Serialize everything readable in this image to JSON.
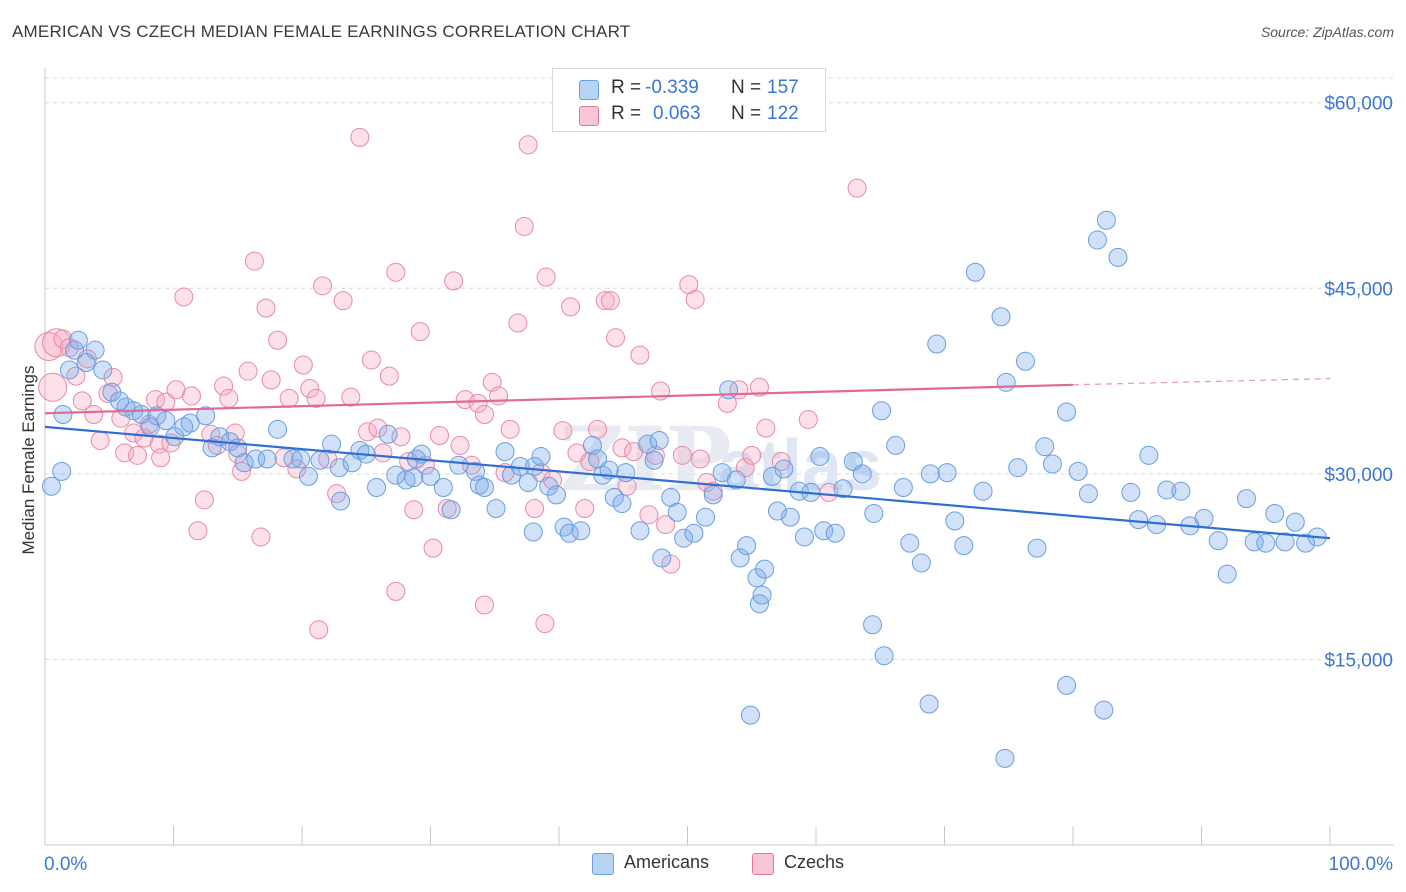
{
  "title": "AMERICAN VS CZECH MEDIAN FEMALE EARNINGS CORRELATION CHART",
  "source": "Source: ZipAtlas.com",
  "watermark": "ZIPatlas",
  "legend": {
    "rows": [
      {
        "r_label": "R =",
        "r_value": "-0.339",
        "n_label": "N =",
        "n_value": "157",
        "color": "#a9c8f0",
        "border": "#6a9fe0"
      },
      {
        "r_label": "R =",
        "r_value": "0.063",
        "n_label": "N =",
        "n_value": "122",
        "color": "#f5b8cb",
        "border": "#e07a9c"
      }
    ]
  },
  "bottom_legend": [
    "Americans",
    "Czechs"
  ],
  "colors": {
    "americans_fill": "rgba(120,170,235,0.35)",
    "americans_stroke": "#6a9fe0",
    "americans_line": "#2f6fd1",
    "czechs_fill": "rgba(245,170,195,0.35)",
    "czechs_stroke": "#e889a8",
    "czechs_line": "#e06a93",
    "axis_text": "#3b76d3",
    "grid": "#d8d8d8"
  },
  "chart_data": {
    "type": "scatter",
    "title": "AMERICAN VS CZECH MEDIAN FEMALE EARNINGS CORRELATION CHART",
    "xlabel": "",
    "ylabel": "Median Female Earnings",
    "xlim": [
      0,
      100
    ],
    "ylim": [
      0,
      62000
    ],
    "x_tick_labels": [
      "0.0%",
      "100.0%"
    ],
    "y_ticks": [
      15000,
      30000,
      45000,
      60000
    ],
    "y_tick_labels": [
      "$15,000",
      "$30,000",
      "$45,000",
      "$60,000"
    ],
    "grid": true,
    "series": [
      {
        "name": "Americans",
        "trend": {
          "x": [
            0,
            100
          ],
          "y": [
            33800,
            24800
          ]
        },
        "points": [
          [
            0.5,
            29000
          ],
          [
            1.3,
            30200
          ],
          [
            1.4,
            34800
          ],
          [
            1.9,
            38400
          ],
          [
            2.3,
            40000
          ],
          [
            2.6,
            40800
          ],
          [
            3.2,
            39000
          ],
          [
            3.9,
            40000
          ],
          [
            4.5,
            38400
          ],
          [
            5.2,
            36600
          ],
          [
            5.8,
            35900
          ],
          [
            6.3,
            35400
          ],
          [
            6.9,
            35100
          ],
          [
            7.5,
            34800
          ],
          [
            8.2,
            33800
          ],
          [
            8.7,
            34700
          ],
          [
            9.4,
            34300
          ],
          [
            10.1,
            33000
          ],
          [
            10.8,
            33800
          ],
          [
            11.3,
            34100
          ],
          [
            12.5,
            34700
          ],
          [
            13.0,
            32100
          ],
          [
            13.6,
            33000
          ],
          [
            14.4,
            32600
          ],
          [
            15.0,
            32100
          ],
          [
            15.5,
            30900
          ],
          [
            16.4,
            31200
          ],
          [
            17.3,
            31200
          ],
          [
            18.1,
            33600
          ],
          [
            19.3,
            31200
          ],
          [
            19.9,
            31200
          ],
          [
            20.5,
            29800
          ],
          [
            21.4,
            31100
          ],
          [
            22.3,
            32400
          ],
          [
            22.9,
            30500
          ],
          [
            23.9,
            30900
          ],
          [
            24.5,
            31900
          ],
          [
            25.0,
            31600
          ],
          [
            25.8,
            28900
          ],
          [
            27.3,
            29900
          ],
          [
            28.1,
            29500
          ],
          [
            28.7,
            29700
          ],
          [
            28.9,
            31200
          ],
          [
            29.3,
            31600
          ],
          [
            30.0,
            29800
          ],
          [
            31.0,
            28900
          ],
          [
            31.6,
            27100
          ],
          [
            32.2,
            30700
          ],
          [
            33.5,
            30200
          ],
          [
            33.8,
            29100
          ],
          [
            34.2,
            28900
          ],
          [
            35.1,
            27200
          ],
          [
            35.8,
            31800
          ],
          [
            36.3,
            29900
          ],
          [
            37.0,
            30600
          ],
          [
            37.6,
            29300
          ],
          [
            38.1,
            30600
          ],
          [
            38.6,
            31400
          ],
          [
            39.2,
            29000
          ],
          [
            39.8,
            28300
          ],
          [
            40.4,
            25700
          ],
          [
            40.8,
            25200
          ],
          [
            41.7,
            25400
          ],
          [
            42.6,
            32300
          ],
          [
            43.0,
            31200
          ],
          [
            43.4,
            29900
          ],
          [
            43.9,
            30300
          ],
          [
            44.3,
            28100
          ],
          [
            44.9,
            27600
          ],
          [
            45.2,
            30100
          ],
          [
            46.3,
            25400
          ],
          [
            46.9,
            32400
          ],
          [
            47.4,
            31100
          ],
          [
            47.8,
            32700
          ],
          [
            48.0,
            23200
          ],
          [
            48.7,
            28100
          ],
          [
            49.2,
            26900
          ],
          [
            49.7,
            24800
          ],
          [
            50.5,
            25200
          ],
          [
            51.4,
            26500
          ],
          [
            52.0,
            28300
          ],
          [
            52.7,
            30100
          ],
          [
            53.2,
            36800
          ],
          [
            53.8,
            29500
          ],
          [
            54.1,
            23200
          ],
          [
            54.6,
            24200
          ],
          [
            55.4,
            21600
          ],
          [
            55.6,
            19500
          ],
          [
            55.8,
            20200
          ],
          [
            56.0,
            22300
          ],
          [
            56.6,
            29800
          ],
          [
            57.5,
            30400
          ],
          [
            58.0,
            26500
          ],
          [
            58.7,
            28600
          ],
          [
            59.1,
            24900
          ],
          [
            59.6,
            28500
          ],
          [
            60.3,
            31400
          ],
          [
            60.6,
            25400
          ],
          [
            61.5,
            25200
          ],
          [
            62.1,
            28800
          ],
          [
            62.9,
            31000
          ],
          [
            63.6,
            30000
          ],
          [
            64.5,
            26800
          ],
          [
            65.1,
            35100
          ],
          [
            66.2,
            32300
          ],
          [
            66.8,
            28900
          ],
          [
            67.3,
            24400
          ],
          [
            68.2,
            22800
          ],
          [
            68.9,
            30000
          ],
          [
            69.4,
            40500
          ],
          [
            70.2,
            30100
          ],
          [
            70.8,
            26200
          ],
          [
            71.5,
            24200
          ],
          [
            72.4,
            46300
          ],
          [
            73.0,
            28600
          ],
          [
            74.4,
            42700
          ],
          [
            74.8,
            37400
          ],
          [
            75.7,
            30500
          ],
          [
            76.3,
            39100
          ],
          [
            77.2,
            24000
          ],
          [
            77.8,
            32200
          ],
          [
            78.4,
            30800
          ],
          [
            79.5,
            35000
          ],
          [
            80.4,
            30200
          ],
          [
            81.2,
            28400
          ],
          [
            81.9,
            48900
          ],
          [
            82.6,
            50500
          ],
          [
            83.5,
            47500
          ],
          [
            84.5,
            28500
          ],
          [
            85.1,
            26300
          ],
          [
            85.9,
            31500
          ],
          [
            86.5,
            25900
          ],
          [
            87.3,
            28700
          ],
          [
            88.4,
            28600
          ],
          [
            89.1,
            25800
          ],
          [
            90.2,
            26400
          ],
          [
            91.3,
            24600
          ],
          [
            92.0,
            21900
          ],
          [
            93.5,
            28000
          ],
          [
            94.1,
            24500
          ],
          [
            95.0,
            24400
          ],
          [
            95.7,
            26800
          ],
          [
            96.5,
            24500
          ],
          [
            97.3,
            26100
          ],
          [
            98.1,
            24400
          ],
          [
            99.0,
            24900
          ],
          [
            54.9,
            10500
          ],
          [
            64.4,
            17800
          ],
          [
            65.3,
            15300
          ],
          [
            68.8,
            11400
          ],
          [
            74.7,
            7000
          ],
          [
            79.5,
            12900
          ],
          [
            82.4,
            10900
          ],
          [
            38.0,
            25300
          ],
          [
            26.7,
            33200
          ],
          [
            23.0,
            27800
          ],
          [
            57.0,
            27000
          ]
        ]
      },
      {
        "name": "Czechs",
        "trend": {
          "x": [
            0,
            80
          ],
          "y": [
            34900,
            37200
          ]
        },
        "trend_dashed": {
          "x": [
            80,
            100
          ],
          "y": [
            37200,
            37700
          ]
        },
        "points": [
          [
            0.3,
            40300
          ],
          [
            0.6,
            37000
          ],
          [
            0.9,
            40600
          ],
          [
            1.4,
            40900
          ],
          [
            1.9,
            40200
          ],
          [
            2.4,
            37900
          ],
          [
            2.9,
            35900
          ],
          [
            3.3,
            39300
          ],
          [
            3.8,
            34800
          ],
          [
            4.3,
            32700
          ],
          [
            4.9,
            36500
          ],
          [
            5.3,
            37800
          ],
          [
            5.9,
            34500
          ],
          [
            6.2,
            31700
          ],
          [
            6.9,
            33300
          ],
          [
            7.2,
            31500
          ],
          [
            7.7,
            32900
          ],
          [
            8.1,
            34000
          ],
          [
            8.6,
            36000
          ],
          [
            8.9,
            32400
          ],
          [
            9.4,
            35800
          ],
          [
            9.8,
            32500
          ],
          [
            10.2,
            36800
          ],
          [
            10.8,
            44300
          ],
          [
            11.4,
            36300
          ],
          [
            11.9,
            25400
          ],
          [
            12.4,
            27900
          ],
          [
            12.9,
            33200
          ],
          [
            13.4,
            32300
          ],
          [
            13.9,
            37100
          ],
          [
            14.3,
            36100
          ],
          [
            14.8,
            33300
          ],
          [
            15.3,
            30200
          ],
          [
            15.8,
            38300
          ],
          [
            16.3,
            47200
          ],
          [
            16.8,
            24900
          ],
          [
            17.2,
            43400
          ],
          [
            17.6,
            37600
          ],
          [
            18.1,
            40800
          ],
          [
            18.6,
            31300
          ],
          [
            19.0,
            36100
          ],
          [
            19.6,
            30400
          ],
          [
            20.1,
            38800
          ],
          [
            20.6,
            36900
          ],
          [
            21.1,
            36100
          ],
          [
            21.6,
            45200
          ],
          [
            22.0,
            31200
          ],
          [
            22.7,
            28400
          ],
          [
            23.2,
            44000
          ],
          [
            23.8,
            36200
          ],
          [
            24.5,
            57200
          ],
          [
            25.1,
            33400
          ],
          [
            25.4,
            39200
          ],
          [
            25.9,
            33700
          ],
          [
            26.3,
            31700
          ],
          [
            26.8,
            37900
          ],
          [
            27.3,
            46300
          ],
          [
            27.7,
            33000
          ],
          [
            28.3,
            31000
          ],
          [
            28.7,
            27100
          ],
          [
            29.2,
            41500
          ],
          [
            29.6,
            30700
          ],
          [
            30.2,
            24000
          ],
          [
            30.7,
            33100
          ],
          [
            31.3,
            27200
          ],
          [
            31.8,
            45600
          ],
          [
            32.3,
            32300
          ],
          [
            32.7,
            36000
          ],
          [
            33.2,
            30700
          ],
          [
            33.7,
            35700
          ],
          [
            34.2,
            34800
          ],
          [
            34.8,
            37400
          ],
          [
            35.3,
            36300
          ],
          [
            35.8,
            30100
          ],
          [
            36.2,
            33600
          ],
          [
            36.8,
            42200
          ],
          [
            37.3,
            50000
          ],
          [
            37.6,
            56600
          ],
          [
            38.1,
            27200
          ],
          [
            38.6,
            30100
          ],
          [
            39.0,
            45900
          ],
          [
            39.5,
            29500
          ],
          [
            40.3,
            33500
          ],
          [
            40.9,
            43500
          ],
          [
            41.4,
            31700
          ],
          [
            42.0,
            27200
          ],
          [
            42.4,
            31000
          ],
          [
            43.0,
            33600
          ],
          [
            43.6,
            44000
          ],
          [
            44.0,
            44000
          ],
          [
            44.4,
            41000
          ],
          [
            44.9,
            32100
          ],
          [
            45.3,
            29000
          ],
          [
            45.8,
            31800
          ],
          [
            46.3,
            39600
          ],
          [
            47.0,
            26700
          ],
          [
            47.5,
            31500
          ],
          [
            47.9,
            36700
          ],
          [
            48.3,
            25900
          ],
          [
            48.7,
            22700
          ],
          [
            49.6,
            31500
          ],
          [
            50.1,
            45300
          ],
          [
            50.6,
            44100
          ],
          [
            51.0,
            31200
          ],
          [
            51.5,
            29300
          ],
          [
            52.0,
            28600
          ],
          [
            53.1,
            35700
          ],
          [
            54.0,
            36800
          ],
          [
            54.5,
            30500
          ],
          [
            55.0,
            31500
          ],
          [
            55.6,
            37000
          ],
          [
            56.1,
            33700
          ],
          [
            57.3,
            31000
          ],
          [
            59.4,
            34400
          ],
          [
            61.0,
            28500
          ],
          [
            63.2,
            53100
          ],
          [
            21.3,
            17400
          ],
          [
            27.3,
            20500
          ],
          [
            34.2,
            19400
          ],
          [
            38.9,
            17900
          ],
          [
            9.0,
            31300
          ],
          [
            15.0,
            31600
          ]
        ]
      }
    ]
  }
}
